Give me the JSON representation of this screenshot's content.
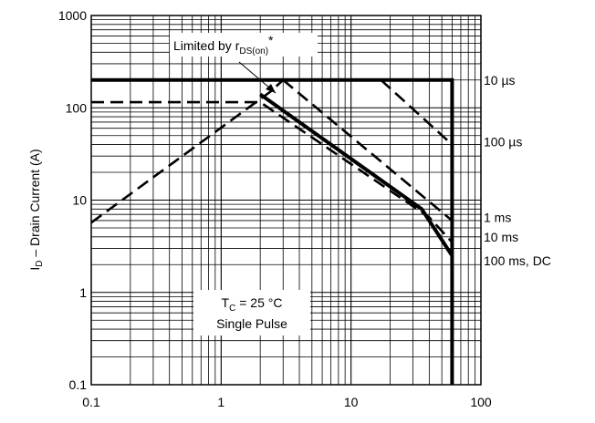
{
  "chart_data": {
    "type": "line",
    "xscale": "log",
    "yscale": "log",
    "xlim": [
      0.1,
      100
    ],
    "ylim": [
      0.1,
      1000
    ],
    "x_ticks": [
      "0.1",
      "1",
      "10",
      "100"
    ],
    "y_ticks": [
      "0.1",
      "1",
      "10",
      "100",
      "1000"
    ],
    "ylabel": {
      "main": "I",
      "sub": "D",
      "rest": " – Drain Current (A)"
    },
    "xlabel": "",
    "grid": true,
    "legend": "none",
    "annotations": {
      "limited_main": "Limited by r",
      "limited_sub": "DS(on)",
      "limited_sup": "*",
      "tc_main": "T",
      "tc_sub": "C",
      "tc_rest": " = 25 °C",
      "pulse": "Single Pulse"
    },
    "boundaries": [
      {
        "label": "10 µs",
        "style": "solid-thick",
        "points": [
          [
            0.1,
            200
          ],
          [
            60,
            200
          ],
          [
            60,
            0.1
          ]
        ]
      },
      {
        "label": "100 µs",
        "style": "dashed",
        "points": [
          [
            17,
            200
          ],
          [
            60,
            40
          ]
        ]
      },
      {
        "label": "1 ms",
        "style": "dashed",
        "points": [
          [
            3,
            200
          ],
          [
            60,
            6
          ]
        ]
      },
      {
        "label": "10 ms",
        "style": "dashed",
        "points": [
          [
            0.1,
            115
          ],
          [
            2,
            115
          ],
          [
            40,
            6.5
          ],
          [
            60,
            3.5
          ]
        ]
      },
      {
        "label": "100 ms, DC",
        "style": "solid-thick",
        "points": [
          [
            2,
            140
          ],
          [
            35,
            8
          ],
          [
            60,
            2.5
          ]
        ]
      },
      {
        "label": "",
        "style": "dashed",
        "points": [
          [
            0.1,
            5.7
          ],
          [
            2.4,
            150
          ],
          [
            3,
            200
          ]
        ]
      }
    ],
    "label_positions_data": [
      {
        "label": "10 µs",
        "y": 200
      },
      {
        "label": "100 µs",
        "y": 43
      },
      {
        "label": "1 ms",
        "y": 6.5
      },
      {
        "label": "10 ms",
        "y": 4
      },
      {
        "label": "100 ms, DC",
        "y": 2.2
      }
    ]
  }
}
